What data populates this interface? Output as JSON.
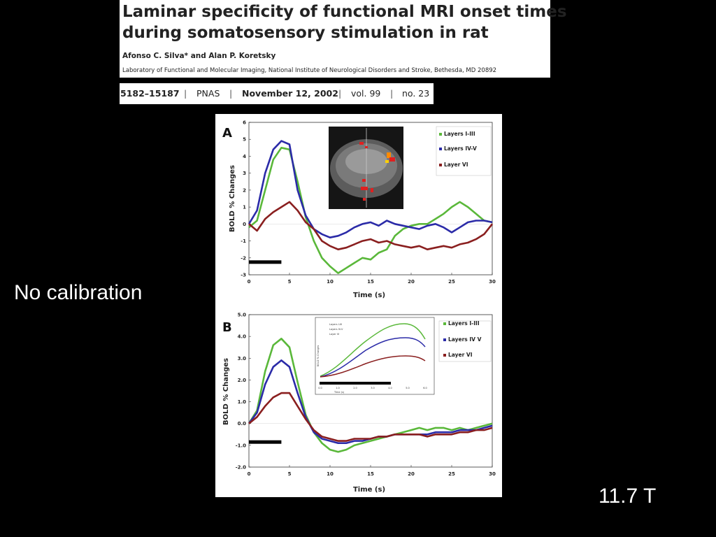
{
  "paper": {
    "title_line1": "Laminar specificity of functional MRI onset times",
    "title_line2": "during somatosensory stimulation in rat",
    "authors": "Afonso C. Silva* and Alan P. Koretsky",
    "affiliation": "Laboratory of Functional and Molecular Imaging, National Institute of Neurological Disorders and Stroke, Bethesda, MD 20892"
  },
  "citation": {
    "pages": "5182–15187",
    "journal": "PNAS",
    "date": "November 12, 2002",
    "volume": "vol. 99",
    "issue": "no. 23"
  },
  "side_note": "No calibration",
  "field_note": "11.7 T",
  "chart_data": [
    {
      "type": "line",
      "panel_label": "A",
      "xlabel": "Time (s)",
      "ylabel": "BOLD % Changes",
      "xlim": [
        0,
        30
      ],
      "ylim": [
        -3,
        6
      ],
      "xticks": [
        "0",
        "5",
        "10",
        "15",
        "20",
        "25",
        "30"
      ],
      "yticks": [
        "-3",
        "-2",
        "-1",
        "0",
        "1",
        "2",
        "3",
        "4",
        "5",
        "6"
      ],
      "stimulus": [
        0,
        4
      ],
      "x": [
        0,
        1,
        2,
        3,
        4,
        5,
        6,
        7,
        8,
        9,
        10,
        11,
        12,
        13,
        14,
        15,
        16,
        17,
        18,
        19,
        20,
        21,
        22,
        23,
        24,
        25,
        26,
        27,
        28,
        29,
        30
      ],
      "series": [
        {
          "name": "Layers I-III",
          "color": "#5ab83a",
          "values": [
            -0.2,
            0.2,
            2.0,
            3.8,
            4.5,
            4.4,
            2.5,
            0.4,
            -1.0,
            -2.0,
            -2.5,
            -2.9,
            -2.6,
            -2.3,
            -2.0,
            -2.1,
            -1.7,
            -1.5,
            -0.7,
            -0.3,
            -0.1,
            0.0,
            0.0,
            0.3,
            0.6,
            1.0,
            1.3,
            1.0,
            0.6,
            0.2,
            0.1
          ]
        },
        {
          "name": "Layers IV-V",
          "color": "#2b2ba8",
          "values": [
            0.0,
            0.8,
            3.0,
            4.4,
            4.9,
            4.7,
            2.0,
            0.5,
            -0.3,
            -0.6,
            -0.8,
            -0.7,
            -0.5,
            -0.2,
            0.0,
            0.1,
            -0.1,
            0.2,
            0.0,
            -0.1,
            -0.2,
            -0.3,
            -0.1,
            0.0,
            -0.2,
            -0.5,
            -0.2,
            0.1,
            0.2,
            0.2,
            0.1
          ]
        },
        {
          "name": "Layer VI",
          "color": "#8a1f1f",
          "values": [
            0.0,
            -0.4,
            0.3,
            0.7,
            1.0,
            1.3,
            0.8,
            0.1,
            -0.3,
            -1.0,
            -1.3,
            -1.5,
            -1.4,
            -1.2,
            -1.0,
            -0.9,
            -1.1,
            -1.0,
            -1.2,
            -1.3,
            -1.4,
            -1.3,
            -1.5,
            -1.4,
            -1.3,
            -1.4,
            -1.2,
            -1.1,
            -0.9,
            -0.6,
            0.0
          ]
        }
      ]
    },
    {
      "type": "line",
      "panel_label": "B",
      "xlabel": "Time (s)",
      "ylabel": "BOLD % Changes",
      "xlim": [
        0,
        30
      ],
      "ylim": [
        -2,
        5
      ],
      "xticks": [
        "0",
        "5",
        "10",
        "15",
        "20",
        "25",
        "30"
      ],
      "yticks": [
        "-2.0",
        "-1.0",
        "0.0",
        "1.0",
        "2.0",
        "3.0",
        "4.0",
        "5.0"
      ],
      "stimulus": [
        0,
        4
      ],
      "x": [
        0,
        1,
        2,
        3,
        4,
        5,
        6,
        7,
        8,
        9,
        10,
        11,
        12,
        13,
        14,
        15,
        16,
        17,
        18,
        19,
        20,
        21,
        22,
        23,
        24,
        25,
        26,
        27,
        28,
        29,
        30
      ],
      "series": [
        {
          "name": "Layers I-III",
          "color": "#5ab83a",
          "values": [
            0.0,
            0.6,
            2.4,
            3.6,
            3.9,
            3.5,
            1.9,
            0.4,
            -0.4,
            -0.9,
            -1.2,
            -1.3,
            -1.2,
            -1.0,
            -0.9,
            -0.8,
            -0.7,
            -0.6,
            -0.5,
            -0.4,
            -0.3,
            -0.2,
            -0.3,
            -0.2,
            -0.2,
            -0.3,
            -0.2,
            -0.3,
            -0.2,
            -0.1,
            0.0
          ]
        },
        {
          "name": "Layers IV V",
          "color": "#2b2ba8",
          "values": [
            0.0,
            0.5,
            1.8,
            2.6,
            2.9,
            2.6,
            1.4,
            0.3,
            -0.4,
            -0.7,
            -0.8,
            -0.9,
            -0.9,
            -0.8,
            -0.8,
            -0.7,
            -0.6,
            -0.6,
            -0.5,
            -0.5,
            -0.5,
            -0.5,
            -0.5,
            -0.4,
            -0.4,
            -0.4,
            -0.3,
            -0.3,
            -0.3,
            -0.2,
            -0.1
          ]
        },
        {
          "name": "Layer VI",
          "color": "#8a1f1f",
          "values": [
            0.0,
            0.3,
            0.8,
            1.2,
            1.4,
            1.4,
            0.8,
            0.2,
            -0.3,
            -0.6,
            -0.7,
            -0.8,
            -0.8,
            -0.7,
            -0.7,
            -0.7,
            -0.6,
            -0.6,
            -0.5,
            -0.5,
            -0.5,
            -0.5,
            -0.6,
            -0.5,
            -0.5,
            -0.5,
            -0.4,
            -0.4,
            -0.3,
            -0.3,
            -0.2
          ]
        }
      ],
      "inset": {
        "xlabel": "Time (s)",
        "ylabel": "BOLD % Changes",
        "xticks": [
          "0.0",
          "1.0",
          "2.0",
          "3.0",
          "4.0",
          "5.0",
          "6.0"
        ],
        "legend": [
          "Layers I-III",
          "Layers IV-V",
          "Layer VI"
        ]
      }
    }
  ]
}
